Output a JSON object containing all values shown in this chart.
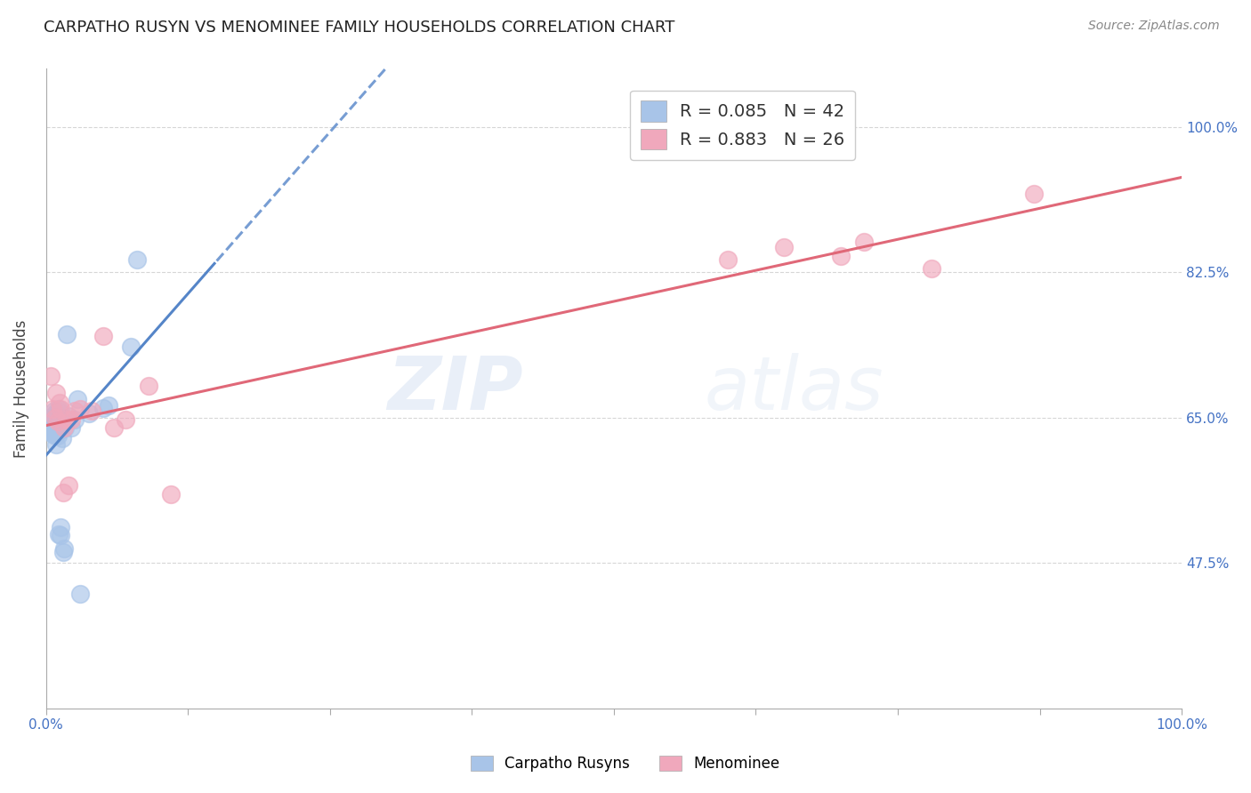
{
  "title": "CARPATHO RUSYN VS MENOMINEE FAMILY HOUSEHOLDS CORRELATION CHART",
  "source": "Source: ZipAtlas.com",
  "ylabel": "Family Households",
  "xmin": 0.0,
  "xmax": 1.0,
  "ymin": 0.3,
  "ymax": 1.07,
  "yticks": [
    0.475,
    0.65,
    0.825,
    1.0
  ],
  "ytick_labels": [
    "47.5%",
    "65.0%",
    "82.5%",
    "100.0%"
  ],
  "watermark": "ZIPatlas",
  "blue_color": "#a8c4e8",
  "pink_color": "#f0a8bc",
  "blue_line_color": "#5585c8",
  "pink_line_color": "#e06878",
  "legend_blue_label": "R = 0.085   N = 42",
  "legend_pink_label": "R = 0.883   N = 26",
  "carpatho_label": "Carpatho Rusyns",
  "menominee_label": "Menominee",
  "blue_scatter_x": [
    0.002,
    0.003,
    0.004,
    0.005,
    0.005,
    0.006,
    0.006,
    0.007,
    0.007,
    0.007,
    0.008,
    0.008,
    0.008,
    0.009,
    0.009,
    0.009,
    0.009,
    0.01,
    0.01,
    0.01,
    0.01,
    0.011,
    0.011,
    0.012,
    0.012,
    0.013,
    0.013,
    0.014,
    0.015,
    0.016,
    0.017,
    0.018,
    0.02,
    0.022,
    0.025,
    0.028,
    0.03,
    0.038,
    0.05,
    0.055,
    0.075,
    0.08
  ],
  "blue_scatter_y": [
    0.635,
    0.635,
    0.64,
    0.64,
    0.65,
    0.63,
    0.645,
    0.63,
    0.648,
    0.658,
    0.628,
    0.642,
    0.655,
    0.618,
    0.632,
    0.642,
    0.655,
    0.628,
    0.638,
    0.648,
    0.658,
    0.51,
    0.66,
    0.635,
    0.645,
    0.508,
    0.518,
    0.625,
    0.488,
    0.492,
    0.638,
    0.75,
    0.652,
    0.638,
    0.648,
    0.672,
    0.438,
    0.655,
    0.662,
    0.665,
    0.735,
    0.84
  ],
  "pink_scatter_x": [
    0.004,
    0.006,
    0.008,
    0.009,
    0.01,
    0.012,
    0.013,
    0.015,
    0.016,
    0.018,
    0.02,
    0.022,
    0.025,
    0.03,
    0.04,
    0.05,
    0.06,
    0.07,
    0.09,
    0.11,
    0.6,
    0.65,
    0.7,
    0.72,
    0.78,
    0.87
  ],
  "pink_scatter_y": [
    0.7,
    0.66,
    0.65,
    0.68,
    0.645,
    0.668,
    0.66,
    0.56,
    0.638,
    0.648,
    0.568,
    0.648,
    0.658,
    0.66,
    0.658,
    0.748,
    0.638,
    0.648,
    0.688,
    0.558,
    0.84,
    0.855,
    0.845,
    0.862,
    0.83,
    0.92
  ],
  "background_color": "#ffffff",
  "grid_color": "#cccccc",
  "tick_color": "#4472c4",
  "axis_color": "#aaaaaa"
}
